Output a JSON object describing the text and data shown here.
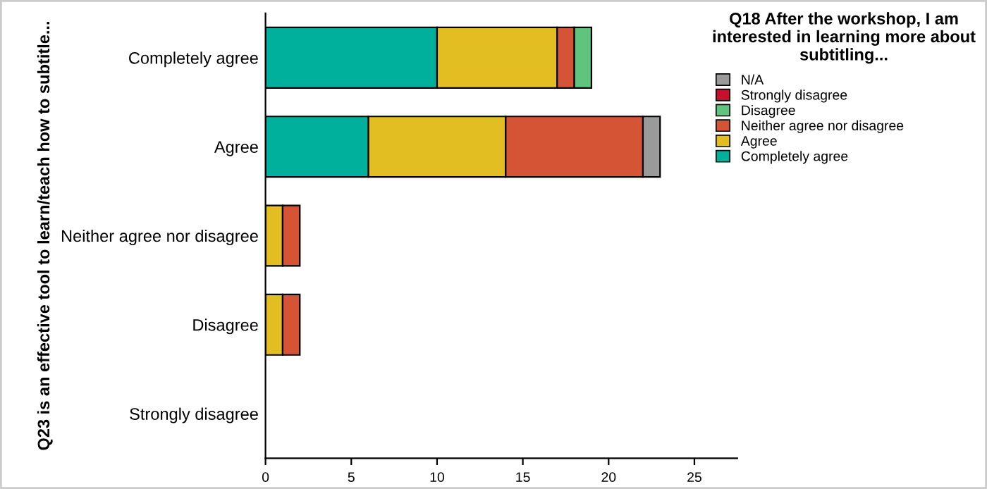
{
  "chart_data": {
    "type": "bar",
    "orientation": "horizontal",
    "stacked": true,
    "ylabel": "Q23 is an effective tool to learn/teach how to subtitle...",
    "legend_title": "Q18 After the workshop, I am interested in learning more about subtitling...",
    "categories": [
      "Completely agree",
      "Agree",
      "Neither agree nor disagree",
      "Disagree",
      "Strongly disagree"
    ],
    "series": [
      {
        "name": "Completely agree",
        "color": "#00b09c",
        "values": [
          10,
          6,
          0,
          0,
          0
        ]
      },
      {
        "name": "Agree",
        "color": "#e2be22",
        "values": [
          7,
          8,
          1,
          1,
          0
        ]
      },
      {
        "name": "Neither agree nor disagree",
        "color": "#d55436",
        "values": [
          1,
          8,
          1,
          1,
          0
        ]
      },
      {
        "name": "Disagree",
        "color": "#5ec47e",
        "values": [
          1,
          0,
          0,
          0,
          0
        ]
      },
      {
        "name": "Strongly disagree",
        "color": "#c8102e",
        "values": [
          0,
          0,
          0,
          0,
          0
        ]
      },
      {
        "name": "N/A",
        "color": "#9a9a9a",
        "values": [
          0,
          1,
          0,
          0,
          0
        ]
      }
    ],
    "xlim": [
      0,
      27.5
    ],
    "xticks": [
      0,
      5,
      10,
      15,
      20,
      25
    ],
    "grid": false,
    "legend": "top right"
  }
}
